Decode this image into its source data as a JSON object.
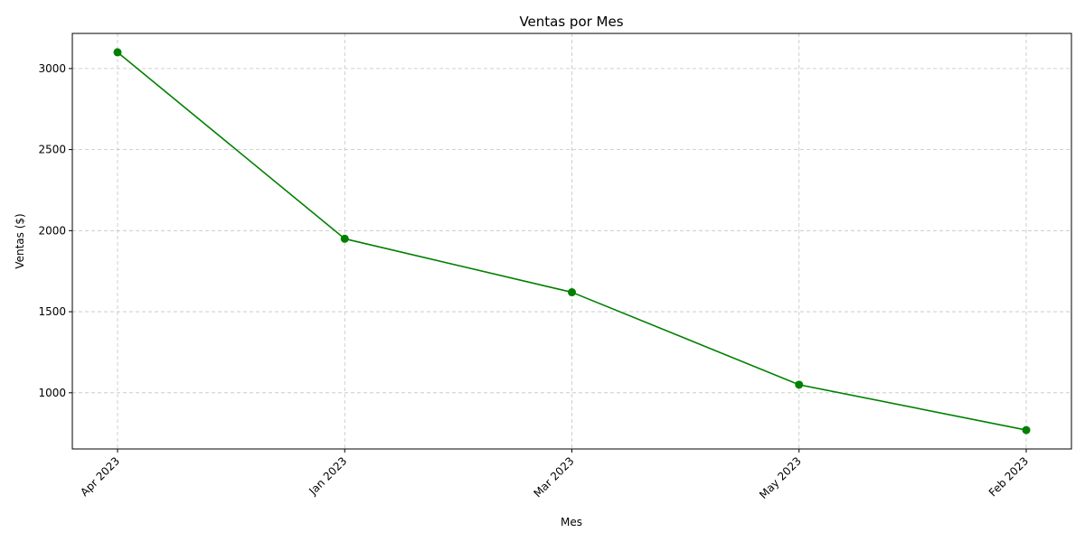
{
  "chart_data": {
    "type": "line",
    "title": "Ventas por Mes",
    "xlabel": "Mes",
    "ylabel": "Ventas ($)",
    "categories": [
      "Apr 2023",
      "Jan 2023",
      "Mar 2023",
      "May 2023",
      "Feb 2023"
    ],
    "series": [
      {
        "values": [
          3100,
          1950,
          1620,
          1050,
          770
        ],
        "color": "#008000",
        "marker": "circle"
      }
    ],
    "yticks": [
      1000,
      1500,
      2000,
      2500,
      3000
    ],
    "ylim": [
      653.5,
      3216.5
    ],
    "grid": true,
    "legend": "none"
  }
}
